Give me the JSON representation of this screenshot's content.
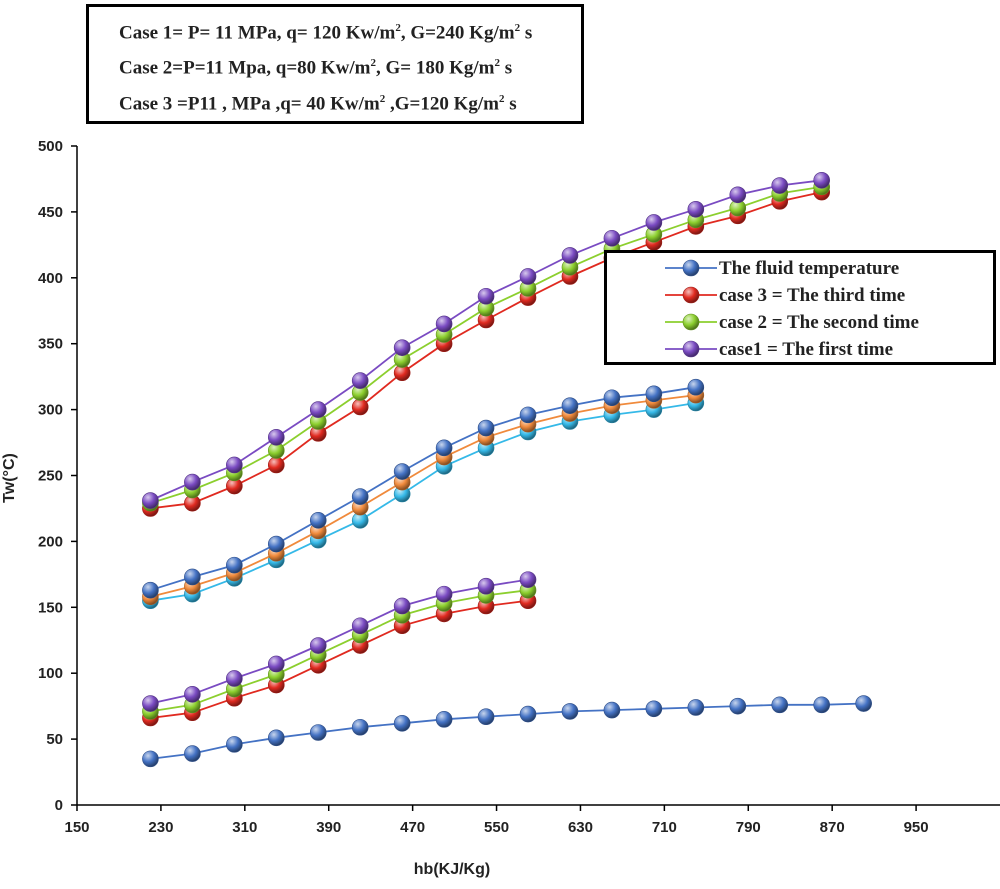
{
  "cases": [
    {
      "prefix": "Case 1= P= 11 MPa, q= 120 Kw/m",
      "mid": ", G=240 Kg/m",
      "suffix": " s"
    },
    {
      "prefix": "Case 2=P=11 Mpa, q=80 Kw/m",
      "mid": ", G= 180 Kg/m",
      "suffix": " s"
    },
    {
      "prefix": "Case 3 =P11 , MPa ,q= 40 Kw/m",
      "mid": " ,G=120 Kg/m",
      "suffix": " s"
    }
  ],
  "superscript": "2",
  "colors": {
    "fluid": "#4472c4",
    "case3": "#e02a20",
    "case2": "#8ccf2e",
    "case1": "#7a4bc2",
    "block2_mid": "#f08a3c",
    "block2_low": "#35b9e8",
    "axis": "#000000"
  },
  "chart_data": {
    "type": "line",
    "xlabel": "hb(KJ/Kg)",
    "ylabel": "Tw(°C)",
    "xlim": [
      150,
      1030
    ],
    "ylim": [
      0,
      500
    ],
    "xticks": [
      150,
      230,
      310,
      390,
      470,
      550,
      630,
      710,
      790,
      870,
      950
    ],
    "yticks": [
      0,
      50,
      100,
      150,
      200,
      250,
      300,
      350,
      400,
      450,
      500
    ],
    "legend": {
      "placement": "right",
      "entries": [
        {
          "label": "The fluid temperature",
          "color_key": "fluid"
        },
        {
          "label": "case 3 = The third time",
          "color_key": "case3"
        },
        {
          "label": "case 2 = The second time",
          "color_key": "case2"
        },
        {
          "label": "case1 = The first time",
          "color_key": "case1"
        }
      ]
    },
    "series": [
      {
        "name": "high-case3",
        "color_key": "case3",
        "x": [
          220,
          260,
          300,
          340,
          380,
          420,
          460,
          500,
          540,
          580,
          620,
          660,
          700,
          740,
          780,
          820,
          860
        ],
        "y": [
          225,
          229,
          242,
          258,
          282,
          302,
          328,
          350,
          368,
          385,
          401,
          415,
          427,
          439,
          447,
          458,
          465
        ]
      },
      {
        "name": "high-case2",
        "color_key": "case2",
        "x": [
          220,
          260,
          300,
          340,
          380,
          420,
          460,
          500,
          540,
          580,
          620,
          660,
          700,
          740,
          780,
          820,
          860
        ],
        "y": [
          229,
          239,
          252,
          269,
          291,
          313,
          338,
          357,
          377,
          392,
          408,
          422,
          433,
          444,
          453,
          464,
          469
        ]
      },
      {
        "name": "high-case1",
        "color_key": "case1",
        "x": [
          220,
          260,
          300,
          340,
          380,
          420,
          460,
          500,
          540,
          580,
          620,
          660,
          700,
          740,
          780,
          820,
          860
        ],
        "y": [
          231,
          245,
          258,
          279,
          300,
          322,
          347,
          365,
          386,
          401,
          417,
          430,
          442,
          452,
          463,
          470,
          474
        ]
      },
      {
        "name": "mid-low",
        "color_key": "block2_low",
        "x": [
          220,
          260,
          300,
          340,
          380,
          420,
          460,
          500,
          540,
          580,
          620,
          660,
          700,
          740
        ],
        "y": [
          155,
          160,
          172,
          186,
          201,
          216,
          236,
          257,
          271,
          283,
          291,
          296,
          300,
          305
        ]
      },
      {
        "name": "mid-mid",
        "color_key": "block2_mid",
        "x": [
          220,
          260,
          300,
          340,
          380,
          420,
          460,
          500,
          540,
          580,
          620,
          660,
          700,
          740
        ],
        "y": [
          158,
          166,
          176,
          191,
          208,
          226,
          245,
          264,
          279,
          289,
          297,
          303,
          307,
          311
        ]
      },
      {
        "name": "mid-high",
        "color_key": "fluid",
        "x": [
          220,
          260,
          300,
          340,
          380,
          420,
          460,
          500,
          540,
          580,
          620,
          660,
          700,
          740
        ],
        "y": [
          163,
          173,
          182,
          198,
          216,
          234,
          253,
          271,
          286,
          296,
          303,
          309,
          312,
          317
        ]
      },
      {
        "name": "low-case3",
        "color_key": "case3",
        "x": [
          220,
          260,
          300,
          340,
          380,
          420,
          460,
          500,
          540,
          580
        ],
        "y": [
          66,
          70,
          81,
          91,
          106,
          121,
          136,
          145,
          151,
          155
        ]
      },
      {
        "name": "low-case2",
        "color_key": "case2",
        "x": [
          220,
          260,
          300,
          340,
          380,
          420,
          460,
          500,
          540,
          580
        ],
        "y": [
          71,
          76,
          88,
          99,
          114,
          129,
          144,
          153,
          159,
          163
        ]
      },
      {
        "name": "low-case1",
        "color_key": "case1",
        "x": [
          220,
          260,
          300,
          340,
          380,
          420,
          460,
          500,
          540,
          580
        ],
        "y": [
          77,
          84,
          96,
          107,
          121,
          136,
          151,
          160,
          166,
          171
        ]
      },
      {
        "name": "fluid",
        "color_key": "fluid",
        "x": [
          220,
          260,
          300,
          340,
          380,
          420,
          460,
          500,
          540,
          580,
          620,
          660,
          700,
          740,
          780,
          820,
          860,
          900
        ],
        "y": [
          35,
          39,
          46,
          51,
          55,
          59,
          62,
          65,
          67,
          69,
          71,
          72,
          73,
          74,
          75,
          76,
          76,
          77
        ]
      }
    ]
  }
}
